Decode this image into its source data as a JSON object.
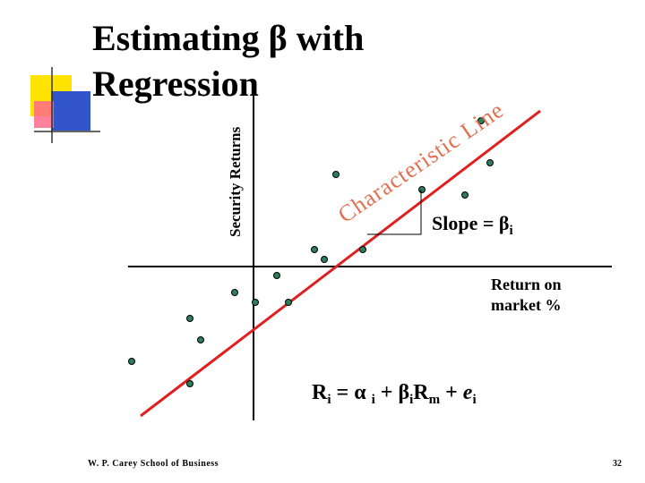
{
  "title": {
    "lines": [
      "Estimating β with",
      "Regression"
    ]
  },
  "y_axis_label": "Security Returns",
  "line_label": "Characteristic Line",
  "slope_label": {
    "text": "Slope = β",
    "sub": "i"
  },
  "x_axis_label": {
    "lines": [
      "Return on",
      "market %"
    ]
  },
  "equation": {
    "parts": [
      "R",
      "i",
      " = α ",
      "i",
      " + β",
      "i",
      "R",
      "m",
      " + ",
      "e",
      "i"
    ]
  },
  "footer": {
    "left": "W. P. Carey School of Business",
    "page": "32"
  }
}
